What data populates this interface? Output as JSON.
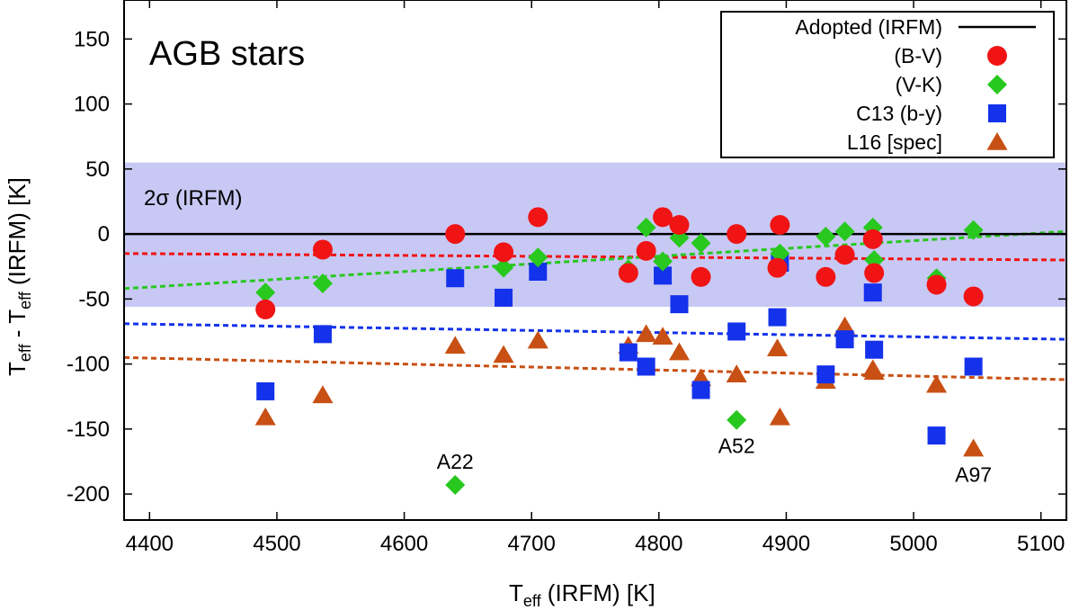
{
  "chart_data": {
    "type": "scatter",
    "panel_label": "AGB stars",
    "xlabel_main": "T",
    "xlabel_sub": "eff",
    "xlabel_rest": " (IRFM) [K]",
    "ylabel_parts": [
      "T",
      "eff",
      " - T",
      "eff",
      " (IRFM) [K]"
    ],
    "xlim": [
      4380,
      5120
    ],
    "ylim": [
      -220,
      180
    ],
    "xticks": [
      4400,
      4500,
      4600,
      4700,
      4800,
      4900,
      5000,
      5100
    ],
    "yticks": [
      -200,
      -150,
      -100,
      -50,
      0,
      50,
      100,
      150
    ],
    "band": {
      "label": "2σ (IRFM)",
      "low": -56,
      "high": 55,
      "color": "#c8c8f5"
    },
    "reference_line": {
      "name": "Adopted (IRFM)",
      "y": 0,
      "color": "#000000"
    },
    "series": [
      {
        "name": "(B-V)",
        "marker": "circle",
        "color": "#f01414",
        "x": [
          4491,
          4536,
          4640,
          4678,
          4705,
          4776,
          4790,
          4803,
          4816,
          4833,
          4861,
          4893,
          4895,
          4931,
          4946,
          4968,
          4969,
          5018,
          5047
        ],
        "y": [
          -58,
          -12,
          0,
          -14,
          13,
          -30,
          -13,
          13,
          7,
          -33,
          0,
          -26,
          7,
          -33,
          -16,
          -4,
          -30,
          -39,
          -48
        ],
        "fit": [
          -15,
          -20
        ]
      },
      {
        "name": "(V-K)",
        "marker": "diamond",
        "color": "#28c81e",
        "x": [
          4491,
          4536,
          4640,
          4678,
          4705,
          4776,
          4790,
          4803,
          4816,
          4833,
          4861,
          4895,
          4931,
          4946,
          4968,
          4969,
          5018,
          5047
        ],
        "y": [
          -45,
          -38,
          -193,
          -26,
          -18,
          -27,
          5,
          -21,
          -3,
          -7,
          -143,
          -15,
          -2,
          2,
          5,
          -20,
          -34,
          3
        ],
        "fit": [
          -42,
          2
        ]
      },
      {
        "name": "C13 (b-y)",
        "marker": "square",
        "color": "#1432eb",
        "x": [
          4491,
          4536,
          4640,
          4678,
          4705,
          4776,
          4790,
          4803,
          4816,
          4833,
          4861,
          4893,
          4895,
          4931,
          4946,
          4968,
          4969,
          5018,
          5047
        ],
        "y": [
          -121,
          -77,
          -34,
          -49,
          -29,
          -91,
          -102,
          -32,
          -54,
          -120,
          -75,
          -64,
          -22,
          -108,
          -81,
          -45,
          -89,
          -155,
          -102
        ],
        "fit": [
          -69,
          -81
        ]
      },
      {
        "name": "L16 [spec]",
        "marker": "triangle",
        "color": "#c85014",
        "x": [
          4491,
          4536,
          4640,
          4678,
          4705,
          4776,
          4790,
          4803,
          4816,
          4833,
          4861,
          4893,
          4895,
          4931,
          4946,
          4968,
          4969,
          5018,
          5047
        ],
        "y": [
          -141,
          -124,
          -86,
          -93,
          -82,
          -86,
          -77,
          -79,
          -91,
          -111,
          -108,
          -88,
          -141,
          -113,
          -71,
          -104,
          -106,
          -116,
          -165
        ],
        "fit": [
          -95,
          -112
        ]
      }
    ],
    "annotations": [
      {
        "text": "A22",
        "x": 4640,
        "y": -175
      },
      {
        "text": "A52",
        "x": 4861,
        "y": -163
      },
      {
        "text": "A97",
        "x": 5047,
        "y": -185
      }
    ]
  }
}
